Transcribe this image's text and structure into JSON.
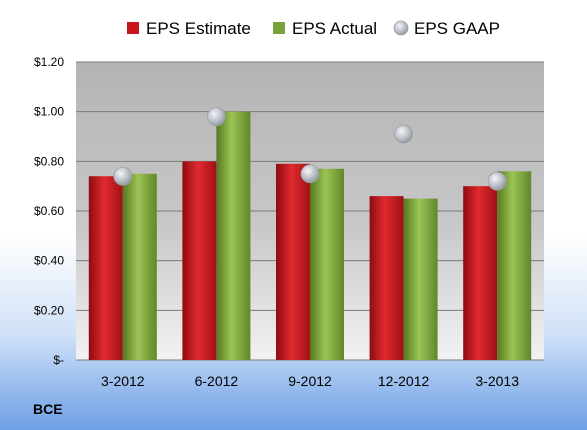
{
  "chart_data": {
    "type": "bar",
    "title": "",
    "xlabel": "",
    "ylabel": "",
    "categories": [
      "3-2012",
      "6-2012",
      "9-2012",
      "12-2012",
      "3-2013"
    ],
    "series": [
      {
        "name": "EPS Estimate",
        "kind": "bar",
        "color": "#c8161d",
        "values": [
          0.74,
          0.8,
          0.79,
          0.66,
          0.7
        ]
      },
      {
        "name": "EPS Actual",
        "kind": "bar",
        "color": "#7aa23b",
        "values": [
          0.75,
          1.0,
          0.77,
          0.65,
          0.76
        ]
      },
      {
        "name": "EPS GAAP",
        "kind": "scatter",
        "color": "#b9bec6",
        "values": [
          0.74,
          0.98,
          0.75,
          0.91,
          0.72
        ]
      }
    ],
    "ylim": [
      0,
      1.2
    ],
    "yticks": [
      0,
      0.2,
      0.4,
      0.6,
      0.8,
      1.0,
      1.2
    ],
    "yticklabels": [
      "$-",
      "$0.20",
      "$0.40",
      "$0.60",
      "$0.80",
      "$1.00",
      "$1.20"
    ],
    "grid": true,
    "legend_position": "top"
  },
  "ticker": "BCE"
}
